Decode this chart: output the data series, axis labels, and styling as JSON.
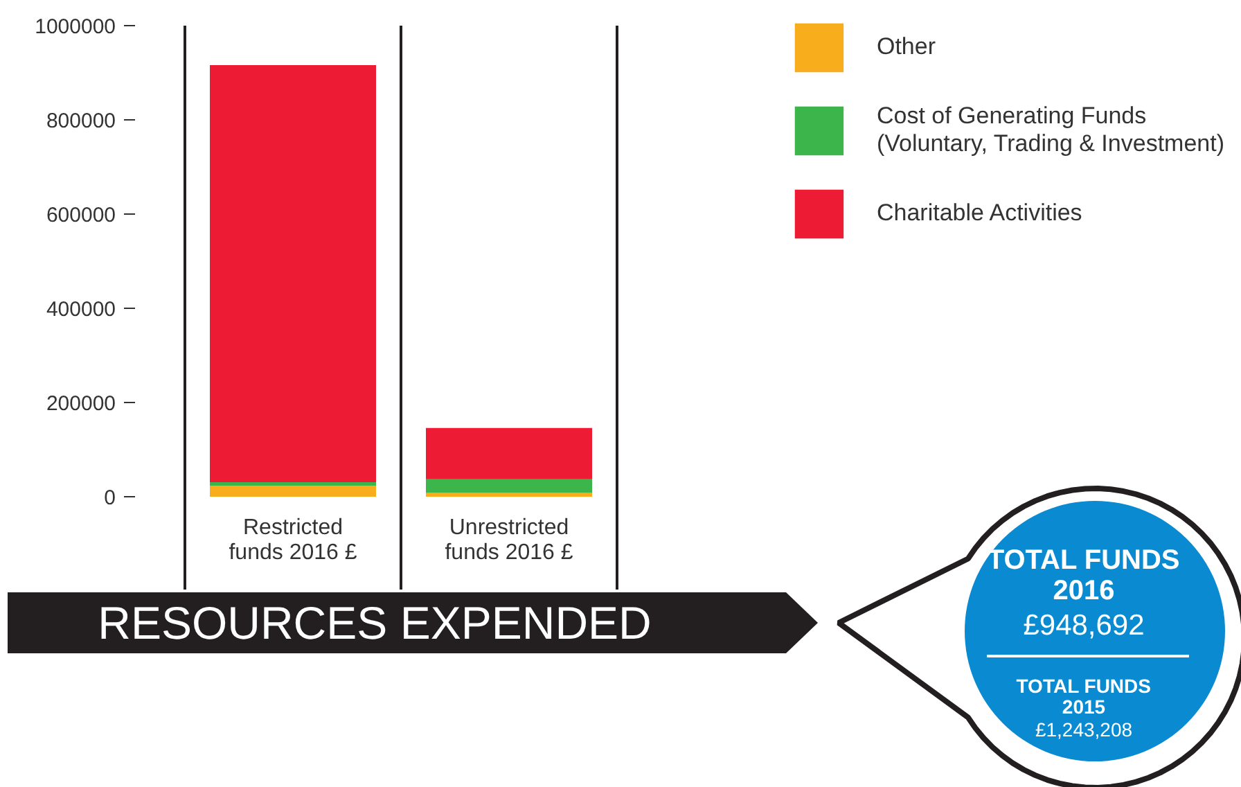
{
  "chart_data": {
    "type": "bar",
    "title": "RESOURCES EXPENDED",
    "categories": [
      "Restricted funds 2016 £",
      "Unrestricted funds 2016 £"
    ],
    "stacked": true,
    "series": [
      {
        "name": "Other",
        "color": "#f8ad1d",
        "values": [
          23000,
          8000
        ]
      },
      {
        "name": "Cost of Generating Funds\n(Voluntary, Trading & Investment)",
        "color": "#3cb54a",
        "values": [
          8000,
          29000
        ]
      },
      {
        "name": "Charitable Activities",
        "color": "#ed1b34",
        "values": [
          885000,
          109000
        ]
      }
    ],
    "ylim": [
      0,
      1000000
    ],
    "yticks": [
      0,
      200000,
      400000,
      600000,
      800000,
      1000000
    ],
    "grid": "x",
    "legend": "top right",
    "annotations": [
      "TOTAL FUNDS\n2016",
      "£948,692",
      "TOTAL FUNDS\n2015",
      "£1,243,208"
    ]
  }
}
